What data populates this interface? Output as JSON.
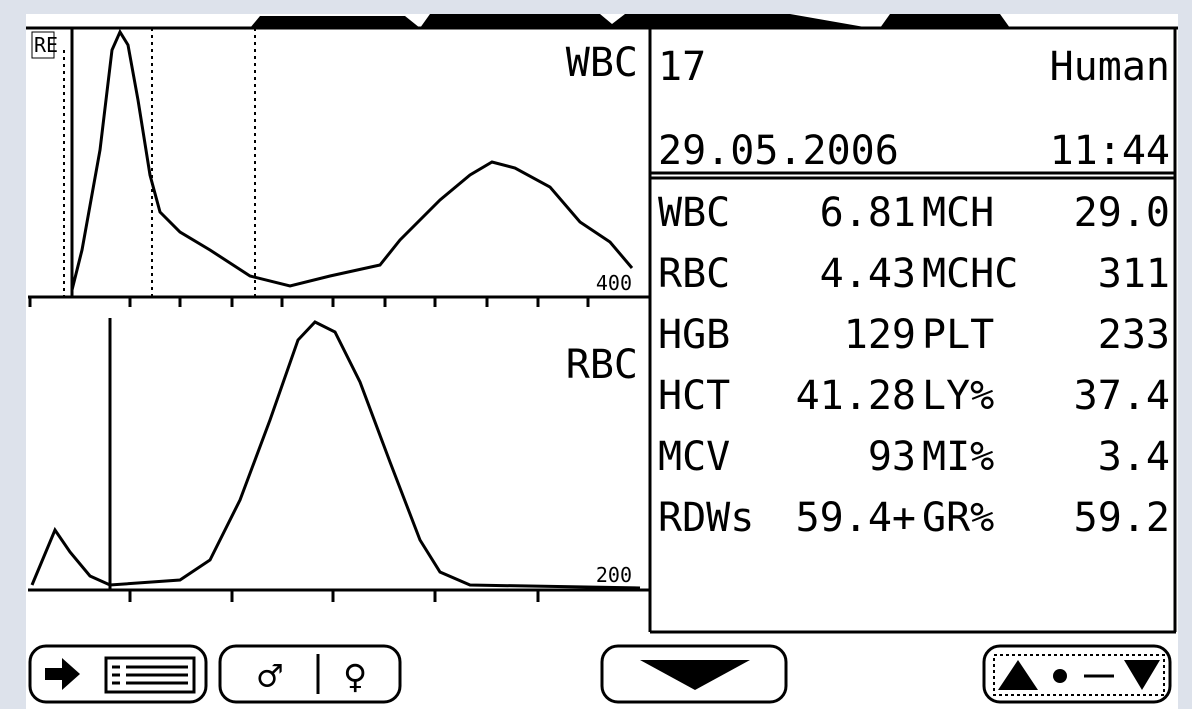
{
  "histograms": {
    "wbc": {
      "label": "WBC",
      "scale": "400",
      "marker": "RE"
    },
    "rbc": {
      "label": "RBC",
      "scale": "200"
    }
  },
  "header": {
    "sample": "17",
    "species": "Human",
    "date": "29.05.2006",
    "time": "11:44"
  },
  "results": {
    "rows": [
      [
        "WBC",
        "6.81",
        "MCH",
        "29.0"
      ],
      [
        "RBC",
        "4.43",
        "MCHC",
        "311"
      ],
      [
        "HGB",
        "129",
        "PLT",
        "233"
      ],
      [
        "HCT",
        "41.28",
        "LY%",
        "37.4"
      ],
      [
        "MCV",
        "93",
        "MI%",
        "3.4"
      ],
      [
        "RDWs",
        "59.4+",
        "GR%",
        "59.2"
      ]
    ]
  },
  "buttons": {
    "gender": {
      "male": "♂",
      "female": "♀"
    }
  }
}
